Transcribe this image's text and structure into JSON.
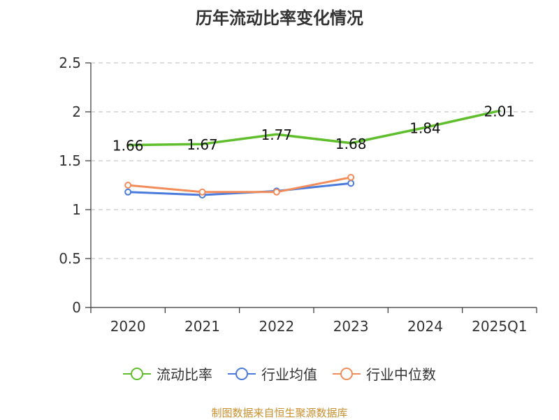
{
  "title": "历年流动比率变化情况",
  "source_note": "制图数据来自恒生聚源数据库",
  "chart_data": {
    "type": "line",
    "title": "历年流动比率变化情况",
    "categories": [
      "2020",
      "2021",
      "2022",
      "2023",
      "2024",
      "2025Q1"
    ],
    "ylim": [
      0,
      2.5
    ],
    "yticks": [
      "0",
      "0.5",
      "1",
      "1.5",
      "2",
      "2.5"
    ],
    "grid": true,
    "legend_position": "bottom",
    "series": [
      {
        "name": "流动比率",
        "color": "#5fbe2c",
        "values": [
          1.66,
          1.67,
          1.77,
          1.68,
          1.84,
          2.01
        ],
        "data_labels": [
          "1.66",
          "1.67",
          "1.77",
          "1.68",
          "1.84",
          "2.01"
        ],
        "show_markers": false
      },
      {
        "name": "行业均值",
        "color": "#4a7bdc",
        "values": [
          1.18,
          1.15,
          1.19,
          1.27,
          null,
          null
        ],
        "show_markers": true
      },
      {
        "name": "行业中位数",
        "color": "#f28c5a",
        "values": [
          1.25,
          1.18,
          1.18,
          1.33,
          null,
          null
        ],
        "show_markers": true
      }
    ]
  }
}
